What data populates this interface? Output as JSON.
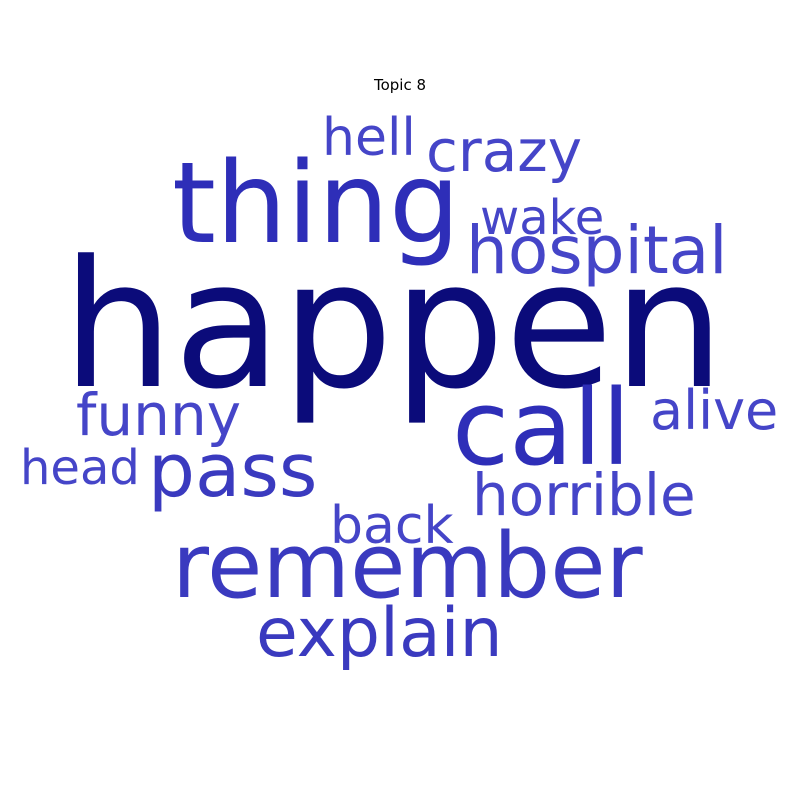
{
  "title": "Topic 8",
  "colors": {
    "dominant": "#0b0b7a",
    "strong": "#2e2eb8",
    "medium": "#3a3abf",
    "light": "#4545c8"
  },
  "words": [
    {
      "text": "happen",
      "tone": "dominant"
    },
    {
      "text": "thing",
      "tone": "strong"
    },
    {
      "text": "call",
      "tone": "strong"
    },
    {
      "text": "remember",
      "tone": "medium"
    },
    {
      "text": "pass",
      "tone": "medium"
    },
    {
      "text": "explain",
      "tone": "medium"
    },
    {
      "text": "hospital",
      "tone": "light"
    },
    {
      "text": "crazy",
      "tone": "light"
    },
    {
      "text": "horrible",
      "tone": "light"
    },
    {
      "text": "funny",
      "tone": "light"
    },
    {
      "text": "alive",
      "tone": "light"
    },
    {
      "text": "back",
      "tone": "light"
    },
    {
      "text": "wake",
      "tone": "light"
    },
    {
      "text": "hell",
      "tone": "light"
    },
    {
      "text": "head",
      "tone": "light"
    }
  ]
}
